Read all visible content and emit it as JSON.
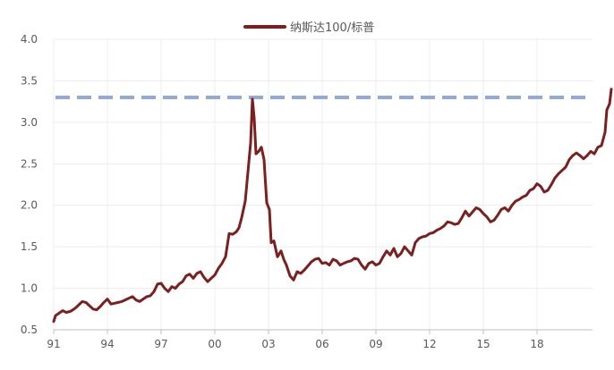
{
  "chart_data": {
    "type": "line",
    "title": "",
    "xlabel": "",
    "ylabel": "",
    "ylim": [
      0.5,
      4.0
    ],
    "yticks": [
      "0.5",
      "1.0",
      "1.5",
      "2.0",
      "2.5",
      "3.0",
      "3.5",
      "4.0"
    ],
    "xticks": [
      "91",
      "94",
      "97",
      "00",
      "03",
      "06",
      "09",
      "12",
      "15",
      "18"
    ],
    "grid": true,
    "legend_position": "top-center",
    "colors": {
      "series": "#7b1f1f",
      "reference": "#8faadc",
      "grid": "#ececec",
      "axis": "#bfbfbf",
      "text": "#595959"
    },
    "series": [
      {
        "name": "纳斯达100/标普",
        "points": [
          [
            1991.0,
            0.6
          ],
          [
            1991.1,
            0.67
          ],
          [
            1991.3,
            0.7
          ],
          [
            1991.5,
            0.73
          ],
          [
            1991.7,
            0.71
          ],
          [
            1991.9,
            0.72
          ],
          [
            1992.0,
            0.73
          ],
          [
            1992.2,
            0.76
          ],
          [
            1992.4,
            0.8
          ],
          [
            1992.6,
            0.84
          ],
          [
            1992.8,
            0.83
          ],
          [
            1993.0,
            0.79
          ],
          [
            1993.2,
            0.75
          ],
          [
            1993.4,
            0.74
          ],
          [
            1993.6,
            0.78
          ],
          [
            1993.8,
            0.83
          ],
          [
            1994.0,
            0.87
          ],
          [
            1994.2,
            0.81
          ],
          [
            1994.4,
            0.82
          ],
          [
            1994.6,
            0.83
          ],
          [
            1994.8,
            0.84
          ],
          [
            1995.0,
            0.86
          ],
          [
            1995.2,
            0.88
          ],
          [
            1995.4,
            0.9
          ],
          [
            1995.6,
            0.86
          ],
          [
            1995.8,
            0.84
          ],
          [
            1996.0,
            0.87
          ],
          [
            1996.2,
            0.9
          ],
          [
            1996.4,
            0.91
          ],
          [
            1996.6,
            0.96
          ],
          [
            1996.8,
            1.05
          ],
          [
            1997.0,
            1.06
          ],
          [
            1997.2,
            1.0
          ],
          [
            1997.4,
            0.96
          ],
          [
            1997.6,
            1.02
          ],
          [
            1997.8,
            1.0
          ],
          [
            1998.0,
            1.05
          ],
          [
            1998.2,
            1.08
          ],
          [
            1998.4,
            1.15
          ],
          [
            1998.6,
            1.17
          ],
          [
            1998.8,
            1.12
          ],
          [
            1999.0,
            1.18
          ],
          [
            1999.2,
            1.2
          ],
          [
            1999.4,
            1.13
          ],
          [
            1999.6,
            1.08
          ],
          [
            1999.8,
            1.12
          ],
          [
            2000.0,
            1.16
          ],
          [
            2000.2,
            1.24
          ],
          [
            2000.4,
            1.3
          ],
          [
            2000.6,
            1.38
          ],
          [
            2000.8,
            1.66
          ],
          [
            2001.0,
            1.65
          ],
          [
            2001.2,
            1.68
          ],
          [
            2001.35,
            1.73
          ],
          [
            2001.5,
            1.85
          ],
          [
            2001.7,
            2.05
          ],
          [
            2001.85,
            2.4
          ],
          [
            2002.0,
            2.75
          ],
          [
            2002.1,
            3.28
          ],
          [
            2002.2,
            3.05
          ],
          [
            2002.3,
            2.62
          ],
          [
            2002.45,
            2.65
          ],
          [
            2002.6,
            2.7
          ],
          [
            2002.75,
            2.55
          ],
          [
            2002.9,
            2.03
          ],
          [
            2003.05,
            1.95
          ],
          [
            2003.15,
            1.55
          ],
          [
            2003.3,
            1.57
          ],
          [
            2003.5,
            1.38
          ],
          [
            2003.7,
            1.45
          ],
          [
            2003.85,
            1.35
          ],
          [
            2004.0,
            1.28
          ],
          [
            2004.2,
            1.15
          ],
          [
            2004.4,
            1.1
          ],
          [
            2004.6,
            1.2
          ],
          [
            2004.8,
            1.18
          ],
          [
            2005.0,
            1.22
          ],
          [
            2005.2,
            1.27
          ],
          [
            2005.4,
            1.32
          ],
          [
            2005.6,
            1.35
          ],
          [
            2005.8,
            1.36
          ],
          [
            2006.0,
            1.3
          ],
          [
            2006.2,
            1.31
          ],
          [
            2006.4,
            1.28
          ],
          [
            2006.6,
            1.35
          ],
          [
            2006.8,
            1.33
          ],
          [
            2007.0,
            1.28
          ],
          [
            2007.2,
            1.3
          ],
          [
            2007.4,
            1.32
          ],
          [
            2007.6,
            1.33
          ],
          [
            2007.8,
            1.36
          ],
          [
            2008.0,
            1.35
          ],
          [
            2008.2,
            1.28
          ],
          [
            2008.4,
            1.23
          ],
          [
            2008.6,
            1.3
          ],
          [
            2008.8,
            1.32
          ],
          [
            2009.0,
            1.28
          ],
          [
            2009.2,
            1.3
          ],
          [
            2009.4,
            1.38
          ],
          [
            2009.6,
            1.45
          ],
          [
            2009.8,
            1.4
          ],
          [
            2010.0,
            1.48
          ],
          [
            2010.2,
            1.38
          ],
          [
            2010.4,
            1.42
          ],
          [
            2010.6,
            1.5
          ],
          [
            2010.8,
            1.45
          ],
          [
            2011.0,
            1.4
          ],
          [
            2011.2,
            1.55
          ],
          [
            2011.4,
            1.6
          ],
          [
            2011.6,
            1.62
          ],
          [
            2011.8,
            1.63
          ],
          [
            2012.0,
            1.66
          ],
          [
            2012.2,
            1.67
          ],
          [
            2012.4,
            1.7
          ],
          [
            2012.6,
            1.72
          ],
          [
            2012.8,
            1.75
          ],
          [
            2013.0,
            1.8
          ],
          [
            2013.2,
            1.79
          ],
          [
            2013.4,
            1.77
          ],
          [
            2013.6,
            1.78
          ],
          [
            2013.8,
            1.85
          ],
          [
            2014.0,
            1.93
          ],
          [
            2014.2,
            1.87
          ],
          [
            2014.4,
            1.92
          ],
          [
            2014.6,
            1.97
          ],
          [
            2014.8,
            1.95
          ],
          [
            2015.0,
            1.9
          ],
          [
            2015.2,
            1.86
          ],
          [
            2015.4,
            1.8
          ],
          [
            2015.6,
            1.82
          ],
          [
            2015.8,
            1.88
          ],
          [
            2016.0,
            1.95
          ],
          [
            2016.2,
            1.97
          ],
          [
            2016.4,
            1.93
          ],
          [
            2016.6,
            2.0
          ],
          [
            2016.8,
            2.05
          ],
          [
            2017.0,
            2.07
          ],
          [
            2017.2,
            2.1
          ],
          [
            2017.4,
            2.12
          ],
          [
            2017.6,
            2.18
          ],
          [
            2017.8,
            2.2
          ],
          [
            2018.0,
            2.26
          ],
          [
            2018.2,
            2.23
          ],
          [
            2018.4,
            2.16
          ],
          [
            2018.6,
            2.18
          ],
          [
            2018.8,
            2.25
          ],
          [
            2019.0,
            2.33
          ],
          [
            2019.2,
            2.38
          ],
          [
            2019.4,
            2.42
          ],
          [
            2019.6,
            2.46
          ],
          [
            2019.8,
            2.55
          ],
          [
            2020.0,
            2.6
          ],
          [
            2020.2,
            2.63
          ],
          [
            2020.4,
            2.6
          ],
          [
            2020.6,
            2.56
          ],
          [
            2020.8,
            2.6
          ],
          [
            2021.0,
            2.65
          ],
          [
            2021.2,
            2.62
          ],
          [
            2021.4,
            2.7
          ],
          [
            2021.6,
            2.72
          ],
          [
            2021.8,
            2.88
          ],
          [
            2021.9,
            3.15
          ],
          [
            2022.05,
            3.22
          ],
          [
            2022.15,
            3.4
          ]
        ]
      }
    ],
    "reference_line": {
      "y": 3.3,
      "style": "dashed"
    }
  }
}
